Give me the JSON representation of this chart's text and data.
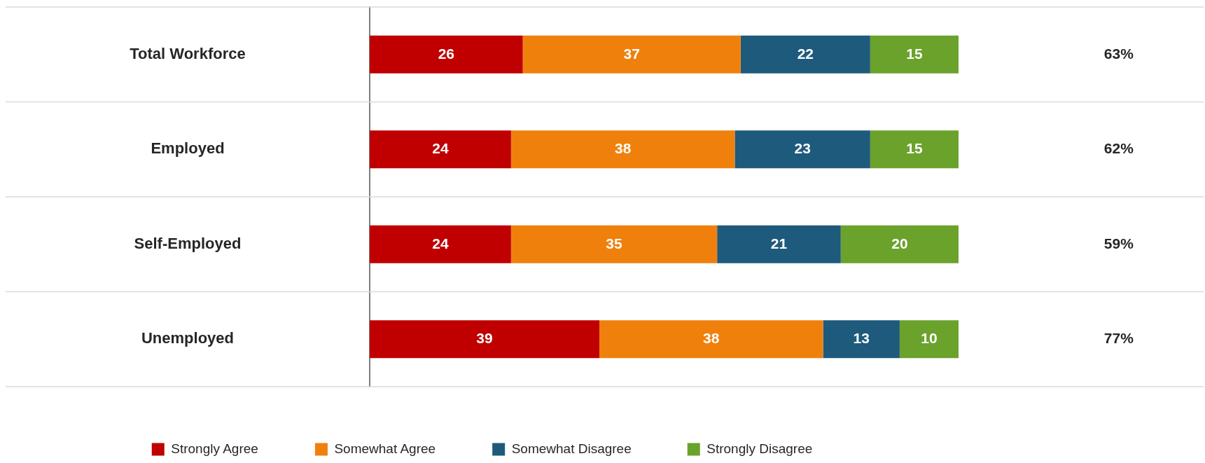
{
  "chart_data": {
    "type": "bar",
    "orientation": "horizontal",
    "stacked": true,
    "categories": [
      "Total Workforce",
      "Employed",
      "Self-Employed",
      "Unemployed"
    ],
    "series": [
      {
        "name": "Strongly Agree",
        "color": "#c00000",
        "values": [
          26,
          24,
          24,
          39
        ]
      },
      {
        "name": "Somewhat Agree",
        "color": "#f0800c",
        "values": [
          37,
          38,
          35,
          38
        ]
      },
      {
        "name": "Somewhat Disagree",
        "color": "#1e5a7c",
        "values": [
          22,
          23,
          21,
          13
        ]
      },
      {
        "name": "Strongly Disagree",
        "color": "#6aa22c",
        "values": [
          15,
          15,
          20,
          10
        ]
      }
    ],
    "data_labels": true,
    "annotations": [
      "63%",
      "62%",
      "59%",
      "77%"
    ],
    "grid": "y",
    "legend": "bottom"
  }
}
